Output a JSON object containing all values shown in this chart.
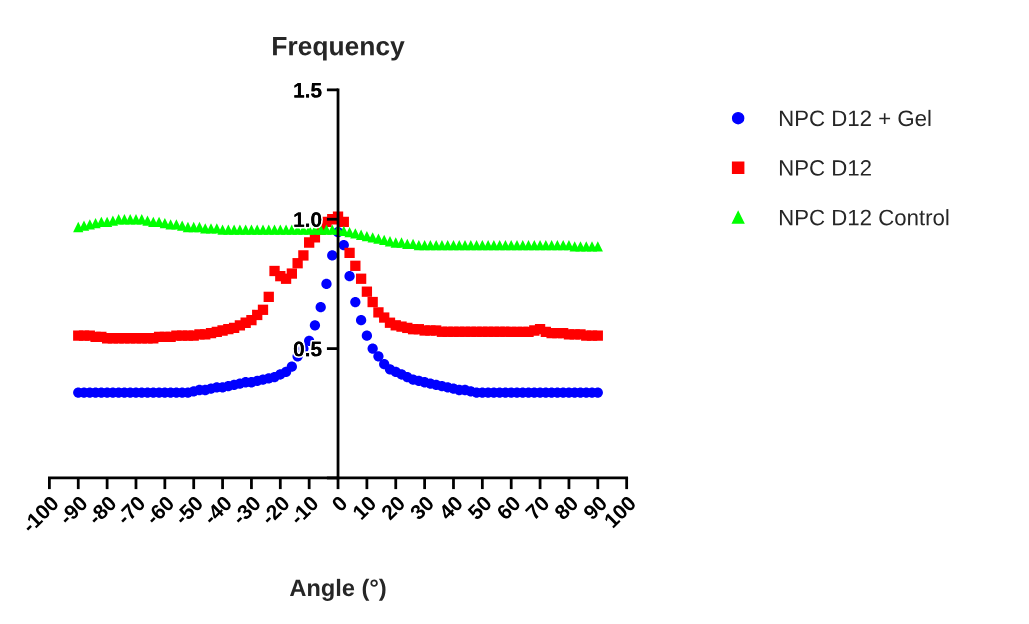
{
  "chart_data": {
    "type": "scatter",
    "title": "Frequency",
    "xlabel": "Angle (°)",
    "x": [
      -90,
      -88,
      -86,
      -84,
      -82,
      -80,
      -78,
      -76,
      -74,
      -72,
      -70,
      -68,
      -66,
      -64,
      -62,
      -60,
      -58,
      -56,
      -54,
      -52,
      -50,
      -48,
      -46,
      -44,
      -42,
      -40,
      -38,
      -36,
      -34,
      -32,
      -30,
      -28,
      -26,
      -24,
      -22,
      -20,
      -18,
      -16,
      -14,
      -12,
      -10,
      -8,
      -6,
      -4,
      -2,
      0,
      2,
      4,
      6,
      8,
      10,
      12,
      14,
      16,
      18,
      20,
      22,
      24,
      26,
      28,
      30,
      32,
      34,
      36,
      38,
      40,
      42,
      44,
      46,
      48,
      50,
      52,
      54,
      56,
      58,
      60,
      62,
      64,
      66,
      68,
      70,
      72,
      74,
      76,
      78,
      80,
      82,
      84,
      86,
      88,
      90
    ],
    "series": [
      {
        "name": "NPC D12 + Gel",
        "color": "#0000ff",
        "marker": "circle",
        "values": [
          0.33,
          0.33,
          0.33,
          0.33,
          0.33,
          0.33,
          0.33,
          0.33,
          0.33,
          0.33,
          0.33,
          0.33,
          0.33,
          0.33,
          0.33,
          0.33,
          0.33,
          0.33,
          0.33,
          0.33,
          0.335,
          0.34,
          0.34,
          0.345,
          0.35,
          0.35,
          0.355,
          0.36,
          0.365,
          0.37,
          0.37,
          0.375,
          0.38,
          0.385,
          0.39,
          0.4,
          0.41,
          0.43,
          0.47,
          0.5,
          0.53,
          0.59,
          0.66,
          0.75,
          0.86,
          0.95,
          0.9,
          0.78,
          0.68,
          0.61,
          0.55,
          0.5,
          0.47,
          0.44,
          0.42,
          0.41,
          0.4,
          0.39,
          0.38,
          0.375,
          0.37,
          0.365,
          0.36,
          0.355,
          0.35,
          0.345,
          0.34,
          0.34,
          0.335,
          0.33,
          0.33,
          0.33,
          0.33,
          0.33,
          0.33,
          0.33,
          0.33,
          0.33,
          0.33,
          0.33,
          0.33,
          0.33,
          0.33,
          0.33,
          0.33,
          0.33,
          0.33,
          0.33,
          0.33,
          0.33,
          0.33
        ]
      },
      {
        "name": "NPC D12",
        "color": "#ff0000",
        "marker": "square",
        "values": [
          0.55,
          0.55,
          0.55,
          0.545,
          0.545,
          0.54,
          0.54,
          0.54,
          0.54,
          0.54,
          0.54,
          0.54,
          0.54,
          0.54,
          0.545,
          0.545,
          0.545,
          0.55,
          0.55,
          0.55,
          0.55,
          0.555,
          0.555,
          0.56,
          0.565,
          0.57,
          0.575,
          0.58,
          0.59,
          0.6,
          0.61,
          0.63,
          0.65,
          0.7,
          0.8,
          0.78,
          0.77,
          0.79,
          0.83,
          0.86,
          0.91,
          0.93,
          0.96,
          0.99,
          1.0,
          1.01,
          0.99,
          0.87,
          0.82,
          0.77,
          0.72,
          0.68,
          0.64,
          0.62,
          0.6,
          0.59,
          0.585,
          0.58,
          0.575,
          0.575,
          0.57,
          0.57,
          0.57,
          0.565,
          0.565,
          0.565,
          0.565,
          0.565,
          0.565,
          0.565,
          0.565,
          0.565,
          0.565,
          0.565,
          0.565,
          0.565,
          0.565,
          0.565,
          0.565,
          0.57,
          0.575,
          0.565,
          0.56,
          0.56,
          0.56,
          0.555,
          0.555,
          0.555,
          0.55,
          0.55,
          0.55
        ]
      },
      {
        "name": "NPC D12 Control",
        "color": "#00ff00",
        "marker": "triangle",
        "values": [
          0.97,
          0.975,
          0.98,
          0.985,
          0.99,
          0.99,
          0.995,
          1.0,
          1.0,
          1.0,
          1.0,
          1.0,
          0.995,
          0.99,
          0.99,
          0.985,
          0.98,
          0.98,
          0.975,
          0.97,
          0.97,
          0.97,
          0.965,
          0.965,
          0.965,
          0.96,
          0.96,
          0.96,
          0.96,
          0.96,
          0.96,
          0.96,
          0.96,
          0.96,
          0.96,
          0.96,
          0.96,
          0.96,
          0.96,
          0.96,
          0.96,
          0.96,
          0.96,
          0.96,
          0.96,
          0.96,
          0.955,
          0.95,
          0.945,
          0.94,
          0.935,
          0.93,
          0.925,
          0.92,
          0.915,
          0.91,
          0.91,
          0.905,
          0.905,
          0.9,
          0.9,
          0.9,
          0.9,
          0.9,
          0.9,
          0.9,
          0.9,
          0.9,
          0.9,
          0.9,
          0.9,
          0.9,
          0.9,
          0.9,
          0.9,
          0.9,
          0.9,
          0.9,
          0.9,
          0.9,
          0.9,
          0.9,
          0.9,
          0.9,
          0.9,
          0.9,
          0.895,
          0.895,
          0.895,
          0.895,
          0.895
        ]
      }
    ],
    "xlim": [
      -100,
      100
    ],
    "xticks": [
      -100,
      -90,
      -80,
      -70,
      -60,
      -50,
      -40,
      -30,
      -20,
      -10,
      0,
      10,
      20,
      30,
      40,
      50,
      60,
      70,
      80,
      90,
      100
    ],
    "ylim": [
      0,
      1.5
    ],
    "yticks": [
      {
        "value": 0,
        "label": null
      },
      {
        "value": 0.5,
        "label": "0.5"
      },
      {
        "value": 1.0,
        "label": "1.0"
      },
      {
        "value": 1.5,
        "label": "1.5"
      }
    ],
    "legend": "right",
    "grid": false
  }
}
